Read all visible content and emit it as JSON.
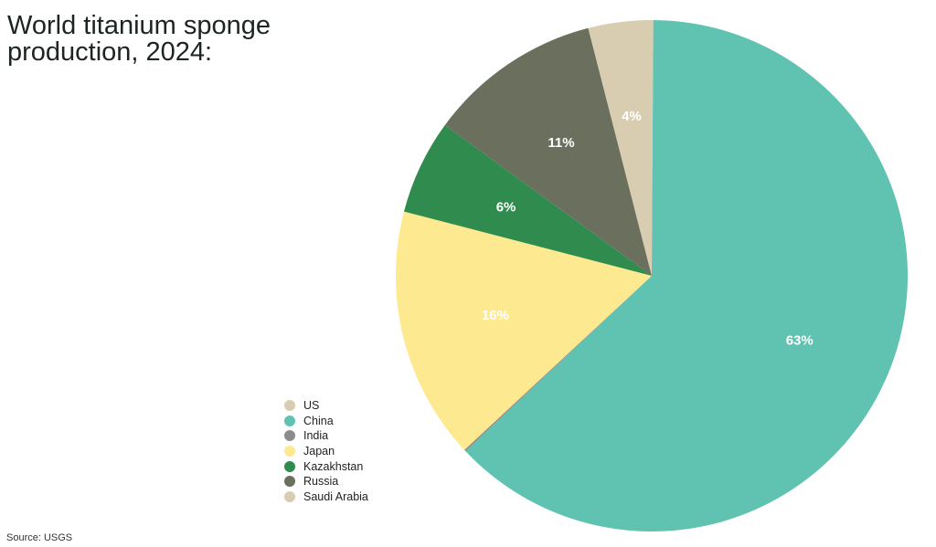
{
  "title": "World titanium sponge\nproduction, 2024:",
  "source": "Source: USGS",
  "chart_data": {
    "type": "pie",
    "title": "World titanium sponge production, 2024:",
    "categories": [
      "US",
      "China",
      "India",
      "Japan",
      "Kazakhstan",
      "Russia",
      "Saudi Arabia"
    ],
    "values": [
      0.1,
      63,
      0.1,
      16,
      6,
      11,
      4
    ],
    "labels": [
      "",
      "63%",
      "",
      "16%",
      "6%",
      "11%",
      "4%"
    ],
    "colors": [
      "#d9cdb1",
      "#60c2b0",
      "#8c8c8c",
      "#fde98f",
      "#2f8b4e",
      "#6b6f5e",
      "#d9cdb1"
    ],
    "legend_position": "left-bottom",
    "source": "USGS"
  }
}
